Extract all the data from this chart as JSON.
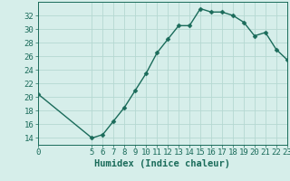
{
  "x": [
    0,
    5,
    6,
    7,
    8,
    9,
    10,
    11,
    12,
    13,
    14,
    15,
    16,
    17,
    18,
    19,
    20,
    21,
    22,
    23
  ],
  "y": [
    20.5,
    14.0,
    14.5,
    16.5,
    18.5,
    21.0,
    23.5,
    26.5,
    28.5,
    30.5,
    30.5,
    33.0,
    32.5,
    32.5,
    32.0,
    31.0,
    29.0,
    29.5,
    27.0,
    25.5
  ],
  "line_color": "#1a6b5a",
  "marker": "D",
  "marker_size": 2.5,
  "bg_color": "#d6eeea",
  "grid_color": "#b5d8d2",
  "xlabel": "Humidex (Indice chaleur)",
  "xlim": [
    0,
    23
  ],
  "ylim": [
    13,
    34
  ],
  "yticks": [
    14,
    16,
    18,
    20,
    22,
    24,
    26,
    28,
    30,
    32
  ],
  "xticks": [
    0,
    5,
    6,
    7,
    8,
    9,
    10,
    11,
    12,
    13,
    14,
    15,
    16,
    17,
    18,
    19,
    20,
    21,
    22,
    23
  ],
  "xtick_labels": [
    "0",
    "5",
    "6",
    "7",
    "8",
    "9",
    "10",
    "11",
    "12",
    "13",
    "14",
    "15",
    "16",
    "17",
    "18",
    "19",
    "20",
    "21",
    "22",
    "23"
  ],
  "font_color": "#1a6b5a",
  "line_width": 1.0,
  "label_fontsize": 7.5,
  "tick_fontsize": 6.5
}
